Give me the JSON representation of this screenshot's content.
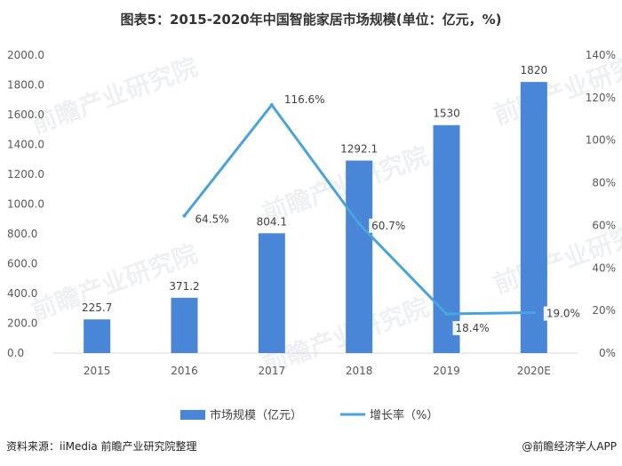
{
  "chart_data": {
    "type": "bar",
    "title": "图表5：2015-2020年中国智能家居市场规模(单位：亿元，%)",
    "categories": [
      "2015",
      "2016",
      "2017",
      "2018",
      "2019",
      "2020E"
    ],
    "series": [
      {
        "name": "市场规模（亿元）",
        "type": "bar",
        "axis": "left",
        "values": [
          225.7,
          371.2,
          804.1,
          1292.1,
          1530,
          1820
        ],
        "labels": [
          "225.7",
          "371.2",
          "804.1",
          "1292.1",
          "1530",
          "1820"
        ],
        "color": "#4a86d8"
      },
      {
        "name": "增长率（%）",
        "type": "line",
        "axis": "right",
        "values": [
          null,
          64.5,
          116.6,
          60.7,
          18.4,
          19.0
        ],
        "labels": [
          "",
          "64.5%",
          "116.6%",
          "60.7%",
          "18.4%",
          "19.0%"
        ],
        "color": "#4aa3dc"
      }
    ],
    "yleft": {
      "ylim": [
        0,
        2000
      ],
      "ticks": [
        "0.0",
        "200.0",
        "400.0",
        "600.0",
        "800.0",
        "1000.0",
        "1200.0",
        "1400.0",
        "1600.0",
        "1800.0",
        "2000.0"
      ]
    },
    "yright": {
      "ylim": [
        0,
        140
      ],
      "ticks": [
        "0%",
        "20%",
        "40%",
        "60%",
        "80%",
        "100%",
        "120%",
        "140%"
      ]
    },
    "legend_position": "bottom",
    "grid": false
  },
  "footer": {
    "source": "资料来源：iiMedia 前瞻产业研究院整理",
    "credit": "@前瞻经济学人APP"
  },
  "watermark": "前瞻产业研究院"
}
